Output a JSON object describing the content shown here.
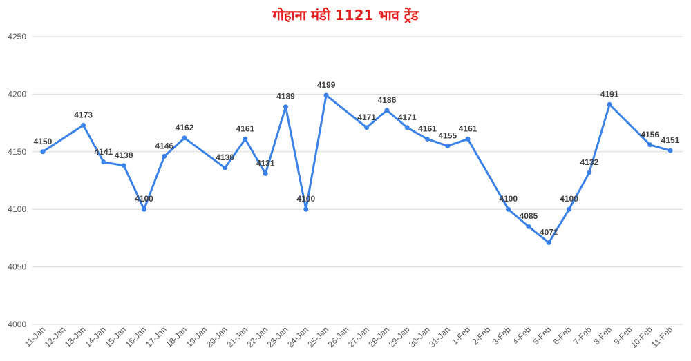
{
  "chart_data": {
    "type": "line",
    "title": "गोहाना मंडी 1121 भाव ट्रेंड",
    "ylim": [
      4000,
      4250
    ],
    "yticks": [
      4000,
      4050,
      4100,
      4150,
      4200,
      4250
    ],
    "grid": true,
    "line_color": "#3b82e8",
    "categories": [
      "11-Jan",
      "12-Jan",
      "13-Jan",
      "14-Jan",
      "15-Jan",
      "16-Jan",
      "17-Jan",
      "18-Jan",
      "19-Jan",
      "20-Jan",
      "21-Jan",
      "22-Jan",
      "23-Jan",
      "24-Jan",
      "25-Jan",
      "26-Jan",
      "27-Jan",
      "28-Jan",
      "29-Jan",
      "30-Jan",
      "31-Jan",
      "1-Feb",
      "2-Feb",
      "3-Feb",
      "4-Feb",
      "5-Feb",
      "6-Feb",
      "7-Feb",
      "8-Feb",
      "9-Feb",
      "10-Feb",
      "11-Feb"
    ],
    "series": [
      {
        "values": [
          4150,
          null,
          4173,
          4141,
          4138,
          4100,
          4146,
          4162,
          null,
          4136,
          4161,
          4131,
          4189,
          4100,
          4199,
          null,
          4171,
          4186,
          4171,
          4161,
          4155,
          4161,
          null,
          4100,
          4085,
          4071,
          4100,
          4132,
          4191,
          null,
          4156,
          4151
        ]
      }
    ]
  }
}
